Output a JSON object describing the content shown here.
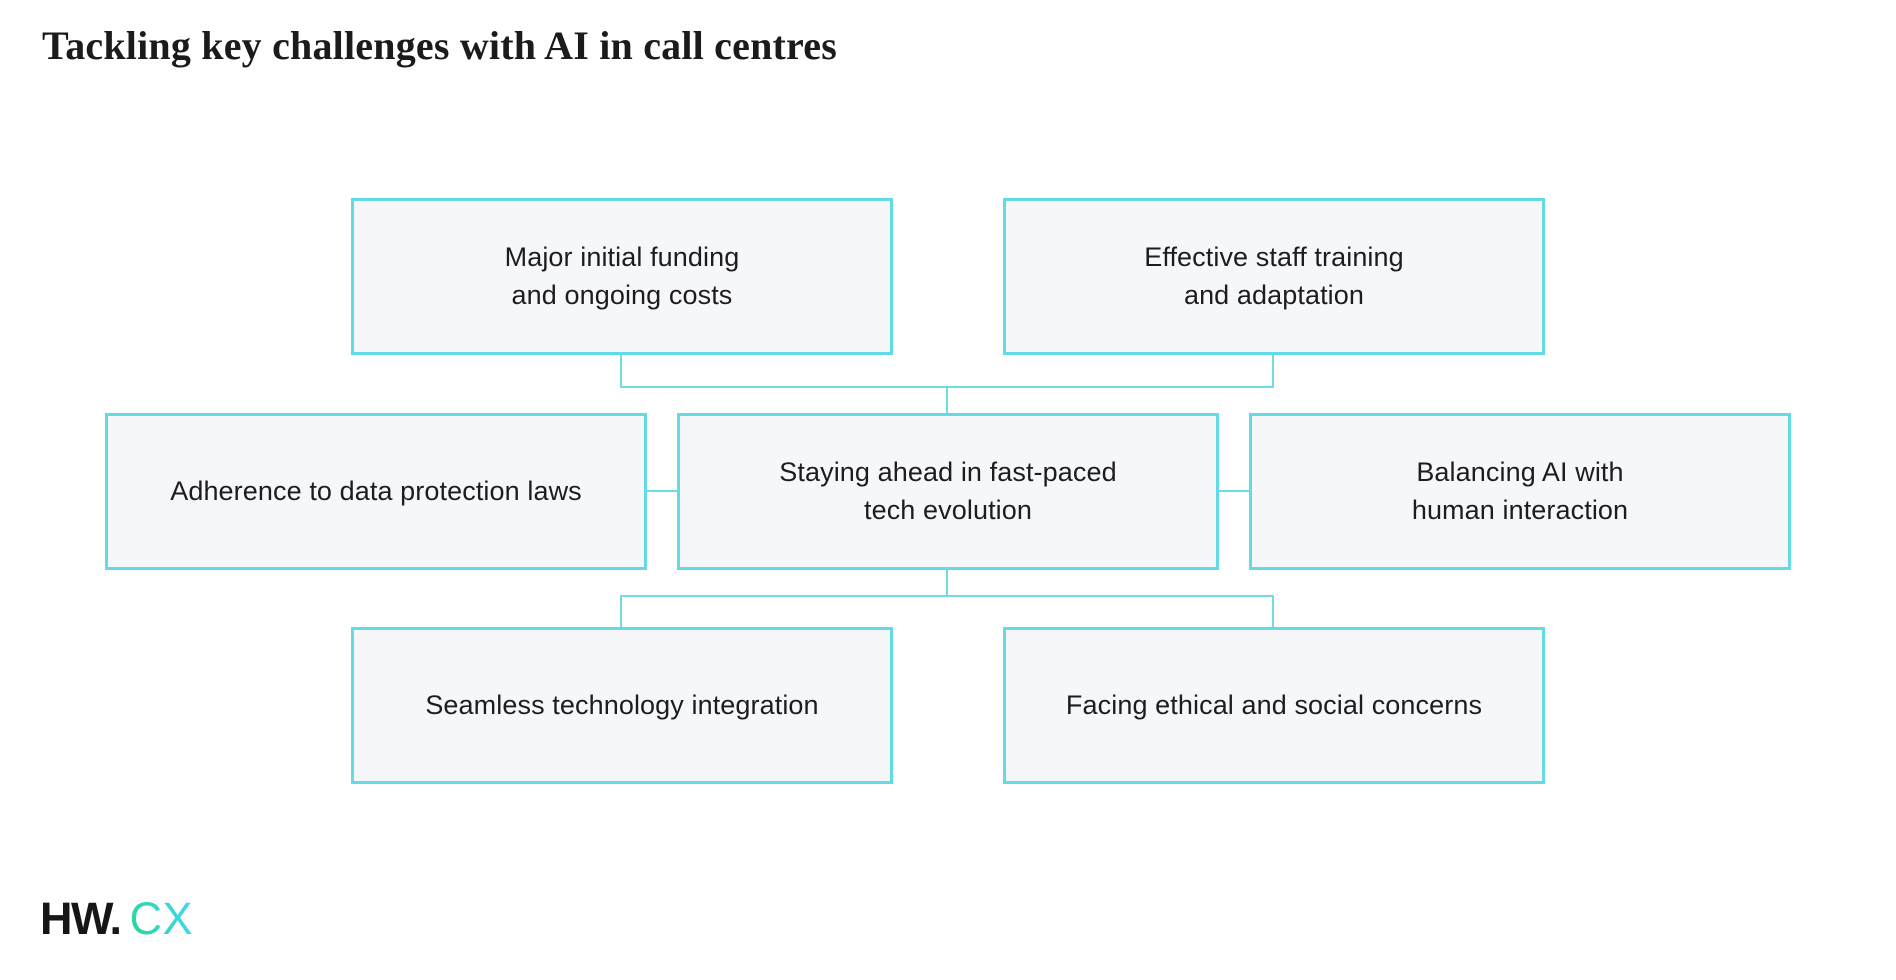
{
  "header": {
    "title": "Tackling key challenges with AI in call centres"
  },
  "diagram": {
    "description": "Seven challenge boxes linked by connector lines to a central node",
    "nodes": [
      {
        "id": "funding",
        "label": "Major initial funding\nand ongoing costs"
      },
      {
        "id": "training",
        "label": "Effective staff training\nand adaptation"
      },
      {
        "id": "data-protection",
        "label": "Adherence to data protection laws"
      },
      {
        "id": "tech-evolution",
        "label": "Staying ahead in fast-paced\ntech evolution"
      },
      {
        "id": "balance",
        "label": "Balancing AI with\nhuman interaction"
      },
      {
        "id": "integration",
        "label": "Seamless technology integration"
      },
      {
        "id": "ethics",
        "label": "Facing ethical and social concerns"
      }
    ],
    "center_node_id": "tech-evolution"
  },
  "footer": {
    "logo_hw": "HW.",
    "logo_cx": "CX"
  },
  "colors": {
    "node_fill": "#f6f7f8",
    "node_border": "#63dbe4",
    "connector": "#6fdde6",
    "text": "#1d1d1f",
    "title_text": "#1b1b1b",
    "logo_black": "#161616",
    "logo_gradient_start": "#27d89d",
    "logo_gradient_end": "#45d5f2"
  }
}
